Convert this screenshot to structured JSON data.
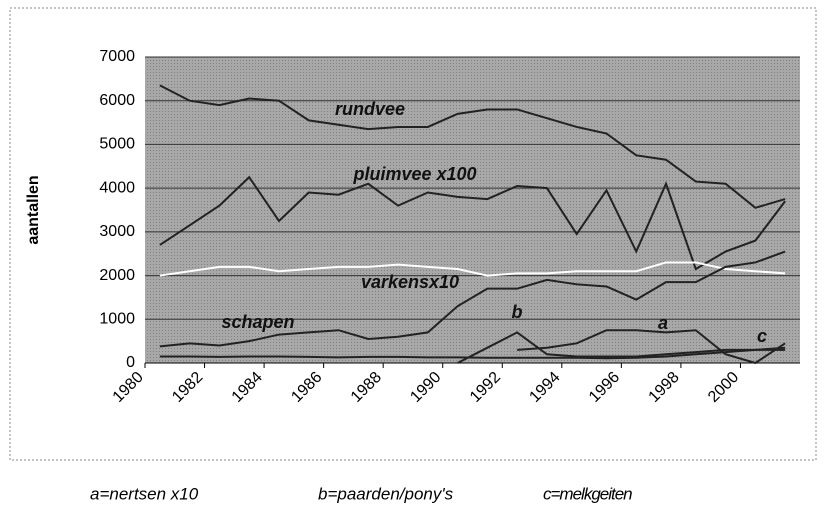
{
  "chart_data": {
    "type": "line",
    "y_label": "aantallen",
    "x": [
      1980.5,
      1981.5,
      1982.5,
      1983.5,
      1984.5,
      1985.5,
      1986.5,
      1987.5,
      1988.5,
      1989.5,
      1990.5,
      1991.5,
      1992.5,
      1993.5,
      1994.5,
      1995.5,
      1996.5,
      1997.5,
      1998.5,
      1999.5,
      2000.5,
      2001.5
    ],
    "series": [
      {
        "name": "rundvee",
        "color": "#222",
        "values": [
          6350,
          6000,
          5900,
          6050,
          6000,
          5550,
          5450,
          5350,
          5400,
          5400,
          5700,
          5800,
          5800,
          5600,
          5400,
          5250,
          4750,
          4650,
          4150,
          4100,
          3550,
          3750
        ]
      },
      {
        "name": "pluimvee x100",
        "color": "#222",
        "values": [
          2700,
          3150,
          3600,
          4250,
          3250,
          3900,
          3850,
          4100,
          3600,
          3900,
          3800,
          3750,
          4050,
          4000,
          2950,
          3950,
          2550,
          4100,
          2150,
          2550,
          2800,
          3700
        ]
      },
      {
        "name": "varkensx10",
        "color": "#ffffff",
        "values": [
          2000,
          2100,
          2200,
          2200,
          2100,
          2150,
          2200,
          2200,
          2250,
          2200,
          2150,
          2000,
          2050,
          2050,
          2100,
          2100,
          2100,
          2300,
          2300,
          2150,
          2100,
          2050
        ]
      },
      {
        "name": "schapen",
        "color": "#222",
        "values": [
          380,
          450,
          400,
          500,
          650,
          700,
          750,
          550,
          600,
          700,
          1300,
          1700,
          1700,
          1900,
          1800,
          1750,
          1450,
          1850,
          1850,
          2200,
          2300,
          2550
        ]
      },
      {
        "name": "a",
        "color": "#222",
        "values": [
          null,
          null,
          null,
          null,
          null,
          null,
          null,
          null,
          null,
          null,
          null,
          null,
          300,
          350,
          450,
          750,
          750,
          700,
          750,
          200,
          0,
          450
        ]
      },
      {
        "name": "b",
        "color": "#222",
        "values": [
          null,
          null,
          null,
          null,
          null,
          null,
          null,
          null,
          null,
          null,
          0,
          350,
          700,
          200,
          150,
          150,
          150,
          200,
          250,
          300,
          300,
          300
        ]
      },
      {
        "name": "c",
        "color": "#222",
        "values": [
          150,
          150,
          140,
          150,
          150,
          140,
          130,
          140,
          140,
          130,
          130,
          120,
          120,
          120,
          120,
          110,
          120,
          150,
          200,
          250,
          300,
          350
        ]
      }
    ],
    "xlim": [
      1980,
      2002
    ],
    "xticks": [
      1980,
      1982,
      1984,
      1986,
      1988,
      1990,
      1992,
      1994,
      1996,
      1998,
      2000
    ],
    "ylim": [
      0,
      7000
    ],
    "yticks": [
      0,
      1000,
      2000,
      3000,
      4000,
      5000,
      6000,
      7000
    ],
    "grid": true,
    "notes": [
      "a=nertsen x10",
      "b=paarden/pony's",
      "c=melkgeiten"
    ]
  }
}
